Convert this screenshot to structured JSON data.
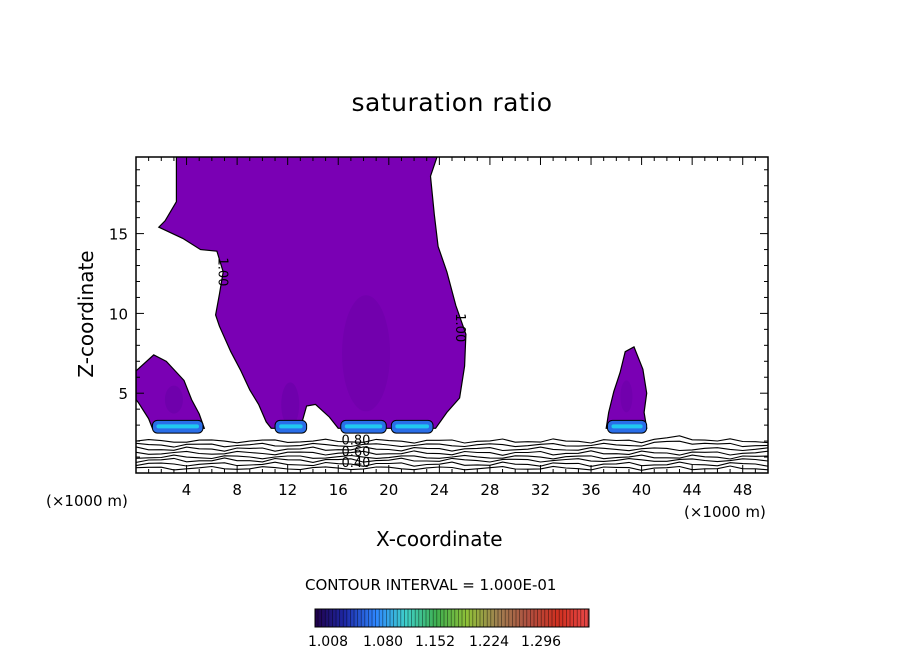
{
  "chart_data": {
    "type": "contour",
    "title": "saturation ratio",
    "xlabel": "X-coordinate",
    "ylabel": "Z-coordinate",
    "x_unit_left": "(×1000 m)",
    "x_unit_right": "(×1000 m)",
    "xlim": [
      0,
      50
    ],
    "ylim": [
      0,
      19.8
    ],
    "xticks": [
      4,
      8,
      12,
      16,
      20,
      24,
      28,
      32,
      36,
      40,
      44,
      48
    ],
    "xtick_labels": [
      "4",
      "8",
      "12",
      "16",
      "20",
      "24",
      "28",
      "32",
      "36",
      "40",
      "44",
      "48"
    ],
    "yticks": [
      5,
      10,
      15
    ],
    "ytick_labels": [
      "5",
      "10",
      "15"
    ],
    "contour_interval_text": "CONTOUR INTERVAL = 1.000E-01",
    "contour_labels": [
      {
        "text": "1.00",
        "x": 6.8,
        "y": 12.6
      },
      {
        "text": "1.00",
        "x": 25.6,
        "y": 9.1
      },
      {
        "text": "0.80",
        "x": 17.4,
        "y": 2.0
      },
      {
        "text": "0.60",
        "x": 17.4,
        "y": 1.3
      },
      {
        "text": "0.40",
        "x": 17.4,
        "y": 0.6
      }
    ],
    "colorbar": {
      "tick_labels": [
        "1.008",
        "1.080",
        "1.152",
        "1.224",
        "1.296"
      ],
      "range": [
        1.0,
        1.3
      ],
      "colors": [
        "#20004a",
        "#1e2aa8",
        "#2e86ff",
        "#3fd0c8",
        "#3fb050",
        "#90c038",
        "#a08050",
        "#b05040",
        "#d03020",
        "#e84848"
      ]
    },
    "fill_color": "#7a00b4",
    "fill_levels": [
      "#6b00a8",
      "#5a20b8",
      "#2a6ee8",
      "#20c8f0"
    ]
  }
}
